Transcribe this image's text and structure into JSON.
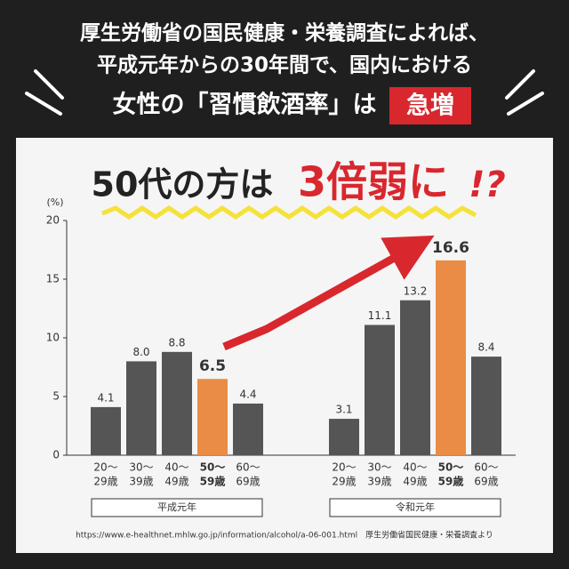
{
  "header": {
    "lines": [
      "厚生労働省の国民健康・栄養調査によれば、",
      "平成元年からの30年間で、国内における",
      "女性の「習慣飲酒率」は"
    ],
    "badge": "急増"
  },
  "headline": {
    "lead": "50代の方は",
    "accent": "3倍弱に",
    "mark": "!?"
  },
  "chart_data": {
    "type": "bar",
    "y_unit": "(%)",
    "categories": [
      [
        "20～",
        "29歳"
      ],
      [
        "30～",
        "39歳"
      ],
      [
        "40～",
        "49歳"
      ],
      [
        "50～",
        "59歳"
      ],
      [
        "60～",
        "69歳"
      ]
    ],
    "series": [
      {
        "name": "平成元年",
        "values": [
          4.1,
          8.0,
          8.8,
          6.5,
          4.4
        ],
        "value_labels": [
          "4.1",
          "8.0",
          "8.8",
          "6.5",
          "4.4"
        ],
        "colors": [
          "#555555",
          "#555555",
          "#555555",
          "#ea8c45",
          "#555555"
        ]
      },
      {
        "name": "令和元年",
        "values": [
          3.1,
          11.1,
          13.2,
          16.6,
          8.4
        ],
        "value_labels": [
          "3.1",
          "11.1",
          "13.2",
          "16.6",
          "8.4"
        ],
        "colors": [
          "#555555",
          "#555555",
          "#555555",
          "#ea8c45",
          "#555555"
        ]
      }
    ],
    "ylim": [
      0,
      20
    ],
    "yticks": [
      0,
      5,
      10,
      15,
      20
    ],
    "source": "https://www.e-healthnet.mhlw.go.jp/information/alcohol/a-06-001.html　厚生労働省国民健康・栄養調査より"
  }
}
